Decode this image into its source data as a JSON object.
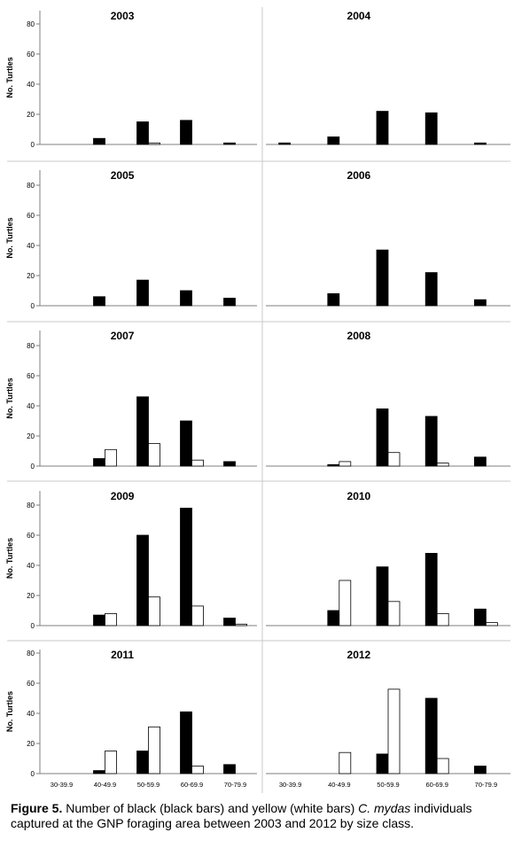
{
  "chart_data": [
    {
      "type": "bar",
      "title": "2003",
      "ylabel": "No. Turtles",
      "ylim": [
        0,
        90
      ],
      "yticks": [
        0,
        20,
        40,
        60,
        80
      ],
      "categories": [
        "30-39.9",
        "40-49.9",
        "50-59.9",
        "60-69.9",
        "70-79.9"
      ],
      "series": [
        {
          "color": "#000000",
          "values": [
            0,
            4,
            15,
            16,
            1
          ]
        },
        {
          "color": "#ffffff",
          "values": [
            0,
            0,
            1,
            0,
            0
          ]
        }
      ]
    },
    {
      "type": "bar",
      "title": "2004",
      "ylabel": "",
      "ylim": [
        0,
        90
      ],
      "yticks": [],
      "categories": [
        "30-39.9",
        "40-49.9",
        "50-59.9",
        "60-69.9",
        "70-79.9"
      ],
      "series": [
        {
          "color": "#000000",
          "values": [
            1,
            5,
            22,
            21,
            1
          ]
        },
        {
          "color": "#ffffff",
          "values": [
            0,
            0,
            0,
            0,
            0
          ]
        }
      ]
    },
    {
      "type": "bar",
      "title": "2005",
      "ylabel": "No. Turtles",
      "ylim": [
        0,
        90
      ],
      "yticks": [
        0,
        20,
        40,
        60,
        80
      ],
      "categories": [
        "30-39.9",
        "40-49.9",
        "50-59.9",
        "60-69.9",
        "70-79.9"
      ],
      "series": [
        {
          "color": "#000000",
          "values": [
            0,
            6,
            17,
            10,
            5
          ]
        },
        {
          "color": "#ffffff",
          "values": [
            0,
            0,
            0,
            0,
            0
          ]
        }
      ]
    },
    {
      "type": "bar",
      "title": "2006",
      "ylabel": "",
      "ylim": [
        0,
        90
      ],
      "yticks": [],
      "categories": [
        "30-39.9",
        "40-49.9",
        "50-59.9",
        "60-69.9",
        "70-79.9"
      ],
      "series": [
        {
          "color": "#000000",
          "values": [
            0,
            8,
            37,
            22,
            4
          ]
        },
        {
          "color": "#ffffff",
          "values": [
            0,
            0,
            0,
            0,
            0
          ]
        }
      ]
    },
    {
      "type": "bar",
      "title": "2007",
      "ylabel": "No. Turtles",
      "ylim": [
        0,
        90
      ],
      "yticks": [
        0,
        20,
        40,
        60,
        80
      ],
      "categories": [
        "30-39.9",
        "40-49.9",
        "50-59.9",
        "60-69.9",
        "70-79.9"
      ],
      "series": [
        {
          "color": "#000000",
          "values": [
            0,
            5,
            46,
            30,
            3
          ]
        },
        {
          "color": "#ffffff",
          "values": [
            0,
            11,
            15,
            4,
            0
          ]
        }
      ]
    },
    {
      "type": "bar",
      "title": "2008",
      "ylabel": "",
      "ylim": [
        0,
        90
      ],
      "yticks": [],
      "categories": [
        "30-39.9",
        "40-49.9",
        "50-59.9",
        "60-69.9",
        "70-79.9"
      ],
      "series": [
        {
          "color": "#000000",
          "values": [
            0,
            1,
            38,
            33,
            6
          ]
        },
        {
          "color": "#ffffff",
          "values": [
            0,
            3,
            9,
            2,
            0
          ]
        }
      ]
    },
    {
      "type": "bar",
      "title": "2009",
      "ylabel": "No. Turtles",
      "ylim": [
        0,
        90
      ],
      "yticks": [
        0,
        20,
        40,
        60,
        80
      ],
      "categories": [
        "30-39.9",
        "40-49.9",
        "50-59.9",
        "60-69.9",
        "70-79.9"
      ],
      "series": [
        {
          "color": "#000000",
          "values": [
            0,
            7,
            60,
            78,
            5
          ]
        },
        {
          "color": "#ffffff",
          "values": [
            0,
            8,
            19,
            13,
            1
          ]
        }
      ]
    },
    {
      "type": "bar",
      "title": "2010",
      "ylabel": "",
      "ylim": [
        0,
        90
      ],
      "yticks": [],
      "categories": [
        "30-39.9",
        "40-49.9",
        "50-59.9",
        "60-69.9",
        "70-79.9"
      ],
      "series": [
        {
          "color": "#000000",
          "values": [
            0,
            10,
            39,
            48,
            11
          ]
        },
        {
          "color": "#ffffff",
          "values": [
            0,
            30,
            16,
            8,
            2
          ]
        }
      ]
    },
    {
      "type": "bar",
      "title": "2011",
      "ylabel": "No. Turtles",
      "ylim": [
        0,
        90
      ],
      "yticks": [
        0,
        20,
        40,
        60,
        80
      ],
      "categories": [
        "30-39.9",
        "40-49.9",
        "50-59.9",
        "60-69.9",
        "70-79.9"
      ],
      "series": [
        {
          "color": "#000000",
          "values": [
            0,
            2,
            15,
            41,
            6
          ]
        },
        {
          "color": "#ffffff",
          "values": [
            0,
            15,
            31,
            5,
            0
          ]
        }
      ]
    },
    {
      "type": "bar",
      "title": "2012",
      "ylabel": "",
      "ylim": [
        0,
        90
      ],
      "yticks": [],
      "categories": [
        "30-39.9",
        "40-49.9",
        "50-59.9",
        "60-69.9",
        "70-79.9"
      ],
      "series": [
        {
          "color": "#000000",
          "values": [
            0,
            0,
            13,
            50,
            5
          ]
        },
        {
          "color": "#ffffff",
          "values": [
            0,
            14,
            56,
            10,
            0
          ]
        }
      ]
    }
  ],
  "caption": {
    "lead": "Figure 5.",
    "text_a": " Number of black (black bars) and yellow (white bars) ",
    "species": "C. mydas",
    "text_b": " individuals captured at the GNP foraging area between 2003 and 2012 by size class."
  }
}
